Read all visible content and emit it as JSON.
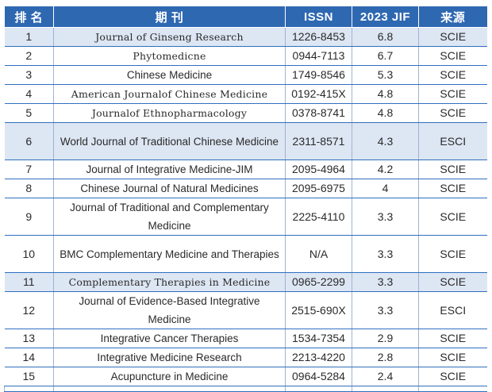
{
  "headers": {
    "rank": "排 名",
    "title": "期 刊",
    "issn": "ISSN",
    "jif": "2023 JIF",
    "source": "来源"
  },
  "rows": [
    {
      "rank": "1",
      "title": "Journal of Ginseng Research",
      "issn": "1226-8453",
      "jif": "6.8",
      "source": "SCIE"
    },
    {
      "rank": "2",
      "title": "Phytomedicne",
      "issn": "0944-7113",
      "jif": "6.7",
      "source": "SCIE"
    },
    {
      "rank": "3",
      "title": "Chinese Medicine",
      "issn": "1749-8546",
      "jif": "5.3",
      "source": "SCIE"
    },
    {
      "rank": "4",
      "title": "American Journalof Chinese Medicine",
      "issn": "0192-415X",
      "jif": "4.8",
      "source": "SCIE"
    },
    {
      "rank": "5",
      "title": "Journalof Ethnopharmacology",
      "issn": "0378-8741",
      "jif": "4.8",
      "source": "SCIE"
    },
    {
      "rank": "6",
      "title": "World Journal of Traditional Chinese Medicine",
      "issn": "2311-8571",
      "jif": "4.3",
      "source": "ESCI"
    },
    {
      "rank": "7",
      "title": "Journal of Integrative Medicine-JIM",
      "issn": "2095-4964",
      "jif": "4.2",
      "source": "SCIE"
    },
    {
      "rank": "8",
      "title": "Chinese Journal of Natural Medicines",
      "issn": "2095-6975",
      "jif": "4",
      "source": "SCIE"
    },
    {
      "rank": "9",
      "title": "Journal of Traditional and Complementary Medicine",
      "issn": "2225-4110",
      "jif": "3.3",
      "source": "SCIE"
    },
    {
      "rank": "10",
      "title": "BMC Complementary Medicine and Therapies",
      "issn": "N/A",
      "jif": "3.3",
      "source": "SCIE"
    },
    {
      "rank": "11",
      "title": "Complementary Therapies in Medicine",
      "issn": "0965-2299",
      "jif": "3.3",
      "source": "SCIE"
    },
    {
      "rank": "12",
      "title": "Journal of Evidence-Based Integrative Medicine",
      "issn": "2515-690X",
      "jif": "3.3",
      "source": "ESCI"
    },
    {
      "rank": "13",
      "title": "Integrative Cancer Therapies",
      "issn": "1534-7354",
      "jif": "2.9",
      "source": "SCIE"
    },
    {
      "rank": "14",
      "title": "Integrative Medicine Research",
      "issn": "2213-4220",
      "jif": "2.8",
      "source": "SCIE"
    },
    {
      "rank": "15",
      "title": "Acupuncture in Medicine",
      "issn": "0964-5284",
      "jif": "2.4",
      "source": "SCIE"
    }
  ]
}
